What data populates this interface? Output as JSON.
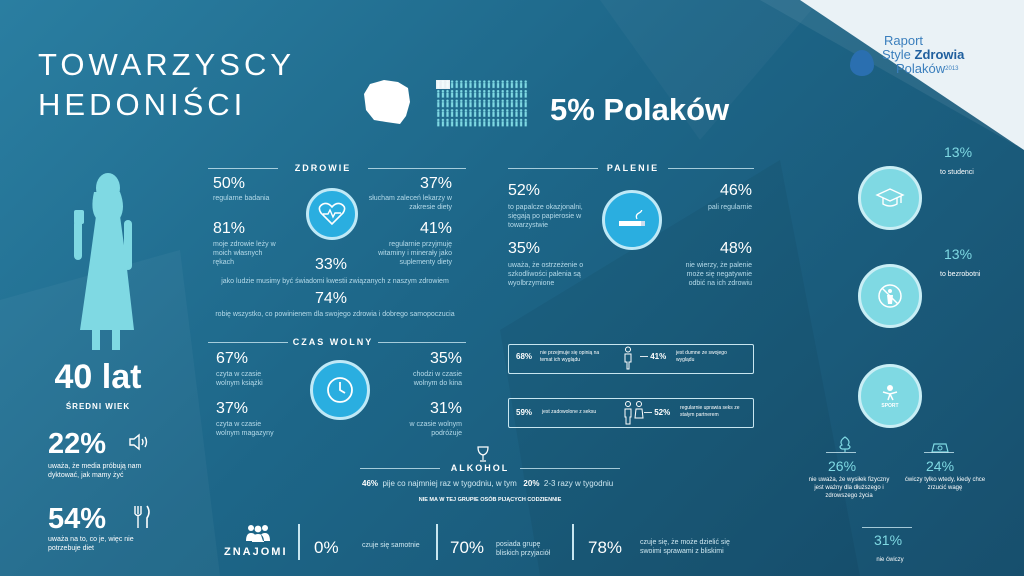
{
  "title_l1": "TOWARZYSCY",
  "title_l2": "HEDONIŚCI",
  "share": "5% Polaków",
  "brand": {
    "l1": "Raport",
    "l2a": "Style ",
    "l2b": "Zdrowia",
    "l3": "Polaków",
    "year": "2013"
  },
  "age": {
    "value": "40 lat",
    "label": "ŚREDNI WIEK"
  },
  "media": {
    "pct": "22%",
    "text": "uważa, że media próbują nam dyktować, jak mamy żyć"
  },
  "diet": {
    "pct": "54%",
    "text": "uważa na to, co je, więc nie potrzebuje diet"
  },
  "zdrowie": {
    "header": "ZDROWIE",
    "a_pct": "50%",
    "a_txt": "regularne badania",
    "b_pct": "37%",
    "b_txt": "słucham zaleceń lekarzy w zakresie diety",
    "c_pct": "81%",
    "c_txt": "moje zdrowie leży w moich własnych rękach",
    "d_pct": "41%",
    "d_txt": "regularnie przyjmuję witaminy i minerały jako suplementy diety",
    "e_pct": "33%",
    "e_txt": "jako ludzie musimy być świadomi kwestii związanych z naszym zdrowiem",
    "f_pct": "74%",
    "f_txt": "robię wszystko, co powinienem dla swojego zdrowia i dobrego samopoczucia"
  },
  "palenie": {
    "header": "PALENIE",
    "a_pct": "52%",
    "a_txt": "to papalcze okazjonalni, sięgają po papierosie w towarzystwie",
    "b_pct": "46%",
    "b_txt": "pali regularnie",
    "c_pct": "35%",
    "c_txt": "uważa, że ostrzeżenie o szkodliwości palenia są wyolbrzymione",
    "d_pct": "48%",
    "d_txt": "nie wierzy, że palenie może się negatywnie odbić na ich zdrowiu"
  },
  "czas": {
    "header": "CZAS WOLNY",
    "a_pct": "67%",
    "a_txt": "czyta w czasie wolnym książki",
    "b_pct": "35%",
    "b_txt": "chodzi w czasie wolnym do kina",
    "c_pct": "37%",
    "c_txt": "czyta w czasie wolnym magazyny",
    "d_pct": "31%",
    "d_txt": "w czasie wolnym podróżuje"
  },
  "look": {
    "a_pct": "68%",
    "a_txt": "nie przejmuje się opinią na temat ich wyglądu",
    "b_pct": "41%",
    "b_txt": "jest dumne ze swojego wyglądu"
  },
  "sex": {
    "a_pct": "59%",
    "a_txt": "jest zadowolone z seksu",
    "b_pct": "52%",
    "b_txt": "regularnie uprawia seks ze stałym partnerem"
  },
  "alkohol": {
    "header": "ALKOHOL",
    "a_pct": "46%",
    "a_txt": "pije co najmniej raz w tygodniu, w tym",
    "b_pct": "20%",
    "b_txt": "2-3 razy w tygodniu",
    "note": "NIE MA W TEJ GRUPIE OSÓB PIJĄCYCH CODZIENNIE"
  },
  "znajomi": {
    "header": "ZNAJOMI",
    "a_pct": "0%",
    "a_txt": "czuje się samotnie",
    "b_pct": "70%",
    "b_txt": "posiada grupę bliskich przyjaciół",
    "c_pct": "78%",
    "c_txt": "czuje się, że może dzielić się swoimi sprawami z bliskimi"
  },
  "right": {
    "studenci_pct": "13%",
    "studenci_txt": "to studenci",
    "bezrobotni_pct": "13%",
    "bezrobotni_txt": "to bezrobotni",
    "sport_label": "SPORT",
    "w1_pct": "26%",
    "w1_txt": "nie uważa, że wysiłek fizyczny jest ważny dla dłuższego i zdrowszego życia",
    "w2_pct": "24%",
    "w2_txt": "ćwiczy tylko wtedy, kiedy chce zrzucić wagę",
    "w3_pct": "31%",
    "w3_txt": "nie ćwiczy"
  },
  "colors": {
    "bg": "#1d6688",
    "accent_blue": "#2aaee0",
    "accent_teal": "#7fd9e3"
  }
}
